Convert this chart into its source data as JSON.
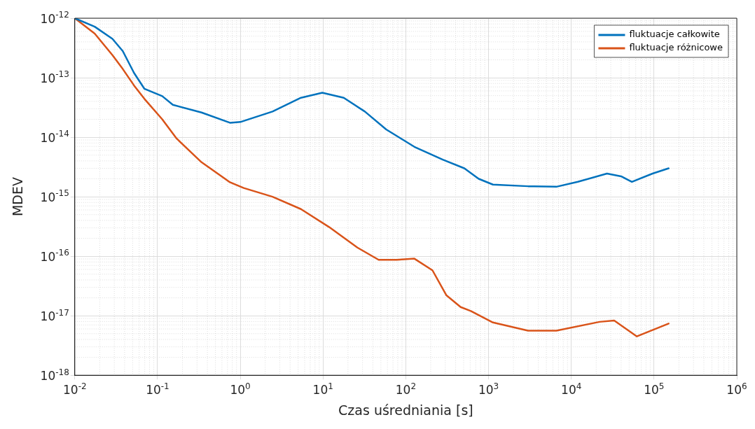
{
  "chart_data": {
    "type": "line",
    "xlabel": "Czas uśredniania [s]",
    "ylabel": "MDEV",
    "log": "xy",
    "grid": true,
    "legend": "top right",
    "marker": "none",
    "line_style": "solid",
    "xlim": [
      0.01,
      1000000
    ],
    "ylim": [
      1e-18,
      1e-12
    ],
    "xticks": [
      {
        "value": 0.01,
        "label": "10$^{-2}$"
      },
      {
        "value": 0.1,
        "label": "10$^{-1}$"
      },
      {
        "value": 1,
        "label": "10$^{0}$"
      },
      {
        "value": 10,
        "label": "10$^{1}$"
      },
      {
        "value": 100,
        "label": "10$^{2}$"
      },
      {
        "value": 1000,
        "label": "10$^{3}$"
      },
      {
        "value": 10000,
        "label": "10$^{4}$"
      },
      {
        "value": 100000,
        "label": "10$^{5}$"
      },
      {
        "value": 1000000,
        "label": "10$^{6}$"
      }
    ],
    "yticks": [
      {
        "value": 1e-18,
        "label": "10$^{-18}$"
      },
      {
        "value": 1e-17,
        "label": "10$^{-17}$"
      },
      {
        "value": 1e-16,
        "label": "10$^{-16}$"
      },
      {
        "value": 1e-15,
        "label": "10$^{-15}$"
      },
      {
        "value": 1e-14,
        "label": "10$^{-14}$"
      },
      {
        "value": 1e-13,
        "label": "10$^{-13}$"
      },
      {
        "value": 1e-12,
        "label": "10$^{-12}$"
      }
    ],
    "series": [
      {
        "name": "fluktuacje całkowite",
        "color": "#0072bd",
        "x": [
          0.01,
          0.0174,
          0.0285,
          0.038,
          0.052,
          0.0695,
          0.114,
          0.153,
          0.34,
          0.75,
          1,
          2.45,
          5.4,
          9.8,
          17.8,
          32,
          58,
          127,
          280,
          510,
          760,
          1130,
          3000,
          6600,
          12000,
          27000,
          40000,
          54000,
          96000,
          150000
        ],
        "values": [
          1e-12,
          7.2e-13,
          4.5e-13,
          2.8e-13,
          1.2e-13,
          6.5e-14,
          4.9e-14,
          3.5e-14,
          2.6e-14,
          1.75e-14,
          1.8e-14,
          2.7e-14,
          4.6e-14,
          5.6e-14,
          4.6e-14,
          2.7e-14,
          1.35e-14,
          6.9e-15,
          4.2e-15,
          3e-15,
          2e-15,
          1.6e-15,
          1.5e-15,
          1.47e-15,
          1.78e-15,
          2.45e-15,
          2.2e-15,
          1.78e-15,
          2.45e-15,
          3e-15
        ]
      },
      {
        "name": "fluktuacje różnicowe",
        "color": "#d95319",
        "x": [
          0.01,
          0.0174,
          0.0285,
          0.038,
          0.052,
          0.0695,
          0.114,
          0.17,
          0.34,
          0.75,
          1.1,
          2.45,
          5.4,
          11.8,
          26,
          47,
          78,
          127,
          210,
          310,
          460,
          610,
          1130,
          3000,
          6600,
          22000,
          33000,
          62000,
          150000
        ],
        "values": [
          1e-12,
          5.5e-13,
          2.4e-13,
          1.4e-13,
          7.4e-14,
          4.4e-14,
          2e-14,
          9.5e-15,
          3.8e-15,
          1.75e-15,
          1.4e-15,
          1e-15,
          6.2e-16,
          3.1e-16,
          1.4e-16,
          8.7e-17,
          8.7e-17,
          9.1e-17,
          5.8e-17,
          2.2e-17,
          1.4e-17,
          1.2e-17,
          7.7e-18,
          5.6e-18,
          5.6e-18,
          7.9e-18,
          8.3e-18,
          4.5e-18,
          7.4e-18
        ]
      }
    ]
  }
}
